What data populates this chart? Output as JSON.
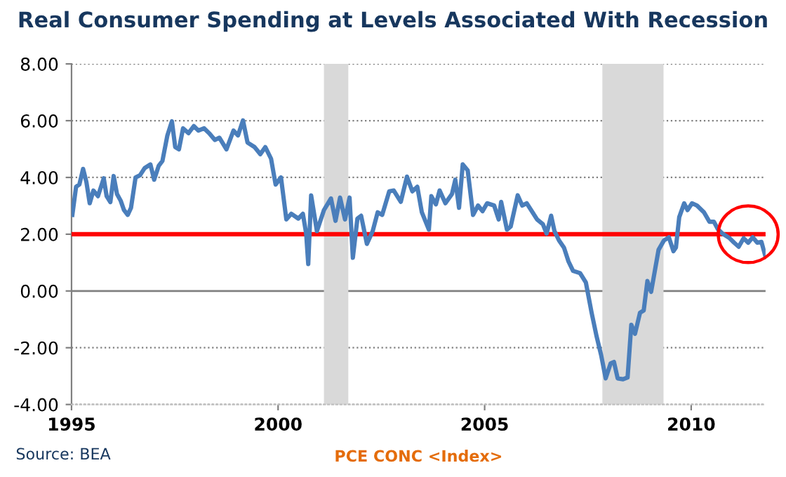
{
  "chart_data": {
    "type": "line",
    "title": "Real Consumer Spending at Levels Associated With Recession",
    "xlabel": "PCE CONC <Index>",
    "annotations": [
      "Source: BEA"
    ],
    "xlim": [
      1995,
      2011.8
    ],
    "xticks": [
      1995,
      2000,
      2005,
      2010
    ],
    "ylim": [
      -4,
      8
    ],
    "yticks": [
      {
        "value": -4,
        "label": "-4.00"
      },
      {
        "value": -2,
        "label": "-2.00"
      },
      {
        "value": 0,
        "label": "0.00"
      },
      {
        "value": 2,
        "label": "2.00"
      },
      {
        "value": 4,
        "label": "4.00"
      },
      {
        "value": 6,
        "label": "6.00"
      },
      {
        "value": 8,
        "label": "8.00"
      }
    ],
    "grid": "y",
    "legend": false,
    "marker": "none",
    "line_style": "solid",
    "bands": [
      {
        "axis": "x",
        "from": 2001.11,
        "to": 2001.7,
        "color": "#d9d9d9"
      },
      {
        "axis": "x",
        "from": 2007.85,
        "to": 2009.33,
        "color": "#d9d9d9"
      }
    ],
    "ref_lines": [
      {
        "axis": "y",
        "value": 2,
        "color": "#ff0000"
      }
    ],
    "series": [
      {
        "color": "#4a7ebb",
        "x": [
          1995.02,
          1995.11,
          1995.19,
          1995.28,
          1995.36,
          1995.44,
          1995.53,
          1995.64,
          1995.78,
          1995.85,
          1995.94,
          1996.02,
          1996.1,
          1996.19,
          1996.27,
          1996.36,
          1996.44,
          1996.55,
          1996.66,
          1996.77,
          1996.91,
          1997.0,
          1997.11,
          1997.2,
          1997.32,
          1997.43,
          1997.51,
          1997.6,
          1997.7,
          1997.83,
          1997.96,
          1998.07,
          1998.21,
          1998.33,
          1998.47,
          1998.58,
          1998.75,
          1998.92,
          1999.03,
          1999.15,
          1999.26,
          1999.43,
          1999.57,
          1999.69,
          1999.83,
          1999.94,
          2000.07,
          2000.2,
          2000.32,
          2000.49,
          2000.6,
          2000.68,
          2000.73,
          2000.8,
          2000.94,
          2001.11,
          2001.28,
          2001.39,
          2001.5,
          2001.62,
          2001.73,
          2001.81,
          2001.92,
          2002.01,
          2002.15,
          2002.29,
          2002.41,
          2002.52,
          2002.69,
          2002.8,
          2002.97,
          2003.12,
          2003.25,
          2003.37,
          2003.48,
          2003.65,
          2003.71,
          2003.82,
          2003.91,
          2004.05,
          2004.21,
          2004.29,
          2004.38,
          2004.47,
          2004.59,
          2004.72,
          2004.84,
          2004.95,
          2005.06,
          2005.23,
          2005.34,
          2005.4,
          2005.54,
          2005.63,
          2005.8,
          2005.91,
          2006.02,
          2006.27,
          2006.41,
          2006.5,
          2006.61,
          2006.69,
          2006.8,
          2006.92,
          2007.03,
          2007.14,
          2007.31,
          2007.45,
          2007.59,
          2007.71,
          2007.82,
          2007.93,
          2008.05,
          2008.13,
          2008.22,
          2008.35,
          2008.46,
          2008.55,
          2008.64,
          2008.76,
          2008.85,
          2008.94,
          2009.03,
          2009.12,
          2009.21,
          2009.34,
          2009.46,
          2009.57,
          2009.63,
          2009.71,
          2009.83,
          2009.91,
          2010.02,
          2010.14,
          2010.31,
          2010.44,
          2010.55,
          2010.64,
          2010.76,
          2010.93,
          2011.04,
          2011.15,
          2011.27,
          2011.38,
          2011.49,
          2011.6,
          2011.7,
          2011.8
        ],
        "values": [
          2.68,
          3.67,
          3.75,
          4.3,
          3.84,
          3.09,
          3.54,
          3.34,
          3.97,
          3.34,
          3.13,
          4.05,
          3.42,
          3.18,
          2.85,
          2.68,
          2.93,
          4.0,
          4.08,
          4.33,
          4.46,
          3.92,
          4.41,
          4.58,
          5.48,
          5.98,
          5.07,
          4.99,
          5.73,
          5.56,
          5.81,
          5.65,
          5.73,
          5.56,
          5.32,
          5.4,
          4.99,
          5.65,
          5.48,
          6.01,
          5.23,
          5.07,
          4.82,
          5.07,
          4.66,
          3.75,
          4.0,
          2.52,
          2.72,
          2.55,
          2.72,
          2.02,
          0.95,
          3.37,
          2.11,
          2.85,
          3.26,
          2.47,
          3.29,
          2.52,
          3.29,
          1.17,
          2.55,
          2.65,
          1.66,
          2.11,
          2.77,
          2.68,
          3.51,
          3.54,
          3.14,
          4.03,
          3.51,
          3.67,
          2.77,
          2.16,
          3.34,
          3.05,
          3.54,
          3.09,
          3.42,
          3.92,
          2.93,
          4.46,
          4.25,
          2.68,
          3.01,
          2.81,
          3.09,
          3.01,
          2.52,
          3.14,
          2.16,
          2.27,
          3.37,
          3.01,
          3.09,
          2.52,
          2.35,
          2.02,
          2.65,
          2.11,
          1.78,
          1.53,
          1.04,
          0.71,
          0.63,
          0.3,
          -0.77,
          -1.6,
          -2.26,
          -3.08,
          -2.55,
          -2.5,
          -3.08,
          -3.11,
          -3.05,
          -1.19,
          -1.51,
          -0.77,
          -0.69,
          0.35,
          -0.03,
          0.71,
          1.45,
          1.78,
          1.89,
          1.4,
          1.53,
          2.6,
          3.09,
          2.85,
          3.09,
          3.01,
          2.77,
          2.44,
          2.44,
          2.19,
          2.02,
          1.86,
          1.7,
          1.56,
          1.86,
          1.7,
          1.89,
          1.7,
          1.73,
          1.2
        ]
      }
    ]
  }
}
